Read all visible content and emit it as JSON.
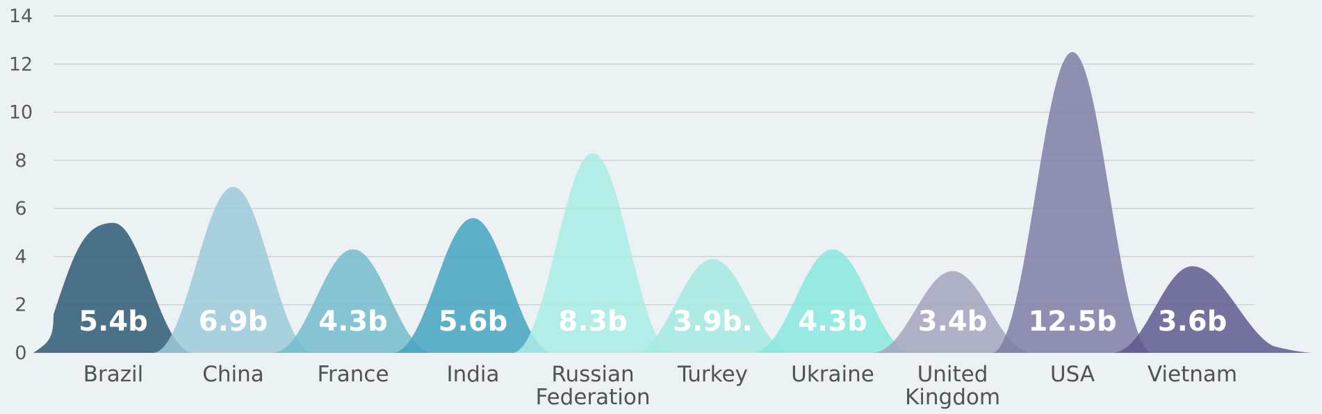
{
  "chart_data": {
    "type": "area",
    "categories": [
      "Brazil",
      "China",
      "France",
      "India",
      "Russian Federation",
      "Turkey",
      "Ukraine",
      "United Kingdom",
      "USA",
      "Vietnam"
    ],
    "values": [
      5.4,
      6.9,
      4.3,
      5.6,
      8.3,
      3.9,
      4.3,
      3.4,
      12.5,
      3.6
    ],
    "data_labels": [
      "5.4b",
      "6.9b",
      "4.3b",
      "5.6b",
      "8.3b",
      "3.9b.",
      "4.3b",
      "3.4b",
      "12.5b",
      "3.6b"
    ],
    "category_label_lines": [
      [
        "Brazil"
      ],
      [
        "China"
      ],
      [
        "France"
      ],
      [
        "India"
      ],
      [
        "Russian",
        "Federation"
      ],
      [
        "Turkey"
      ],
      [
        "Ukraine"
      ],
      [
        "United",
        "Kingdom"
      ],
      [
        "USA"
      ],
      [
        "Vietnam"
      ]
    ],
    "colors": [
      "#2e5a73",
      "#9ccad8",
      "#74bccd",
      "#45a4bf",
      "#a9ece4",
      "#a4eae1",
      "#8ae8dd",
      "#a3a5bd",
      "#7e7ea5",
      "#5e5a8e"
    ],
    "yticks": [
      0,
      2,
      4,
      6,
      8,
      10,
      12,
      14
    ],
    "ylim": [
      0,
      14
    ],
    "grid": true,
    "title": "",
    "xlabel": "",
    "ylabel": ""
  }
}
